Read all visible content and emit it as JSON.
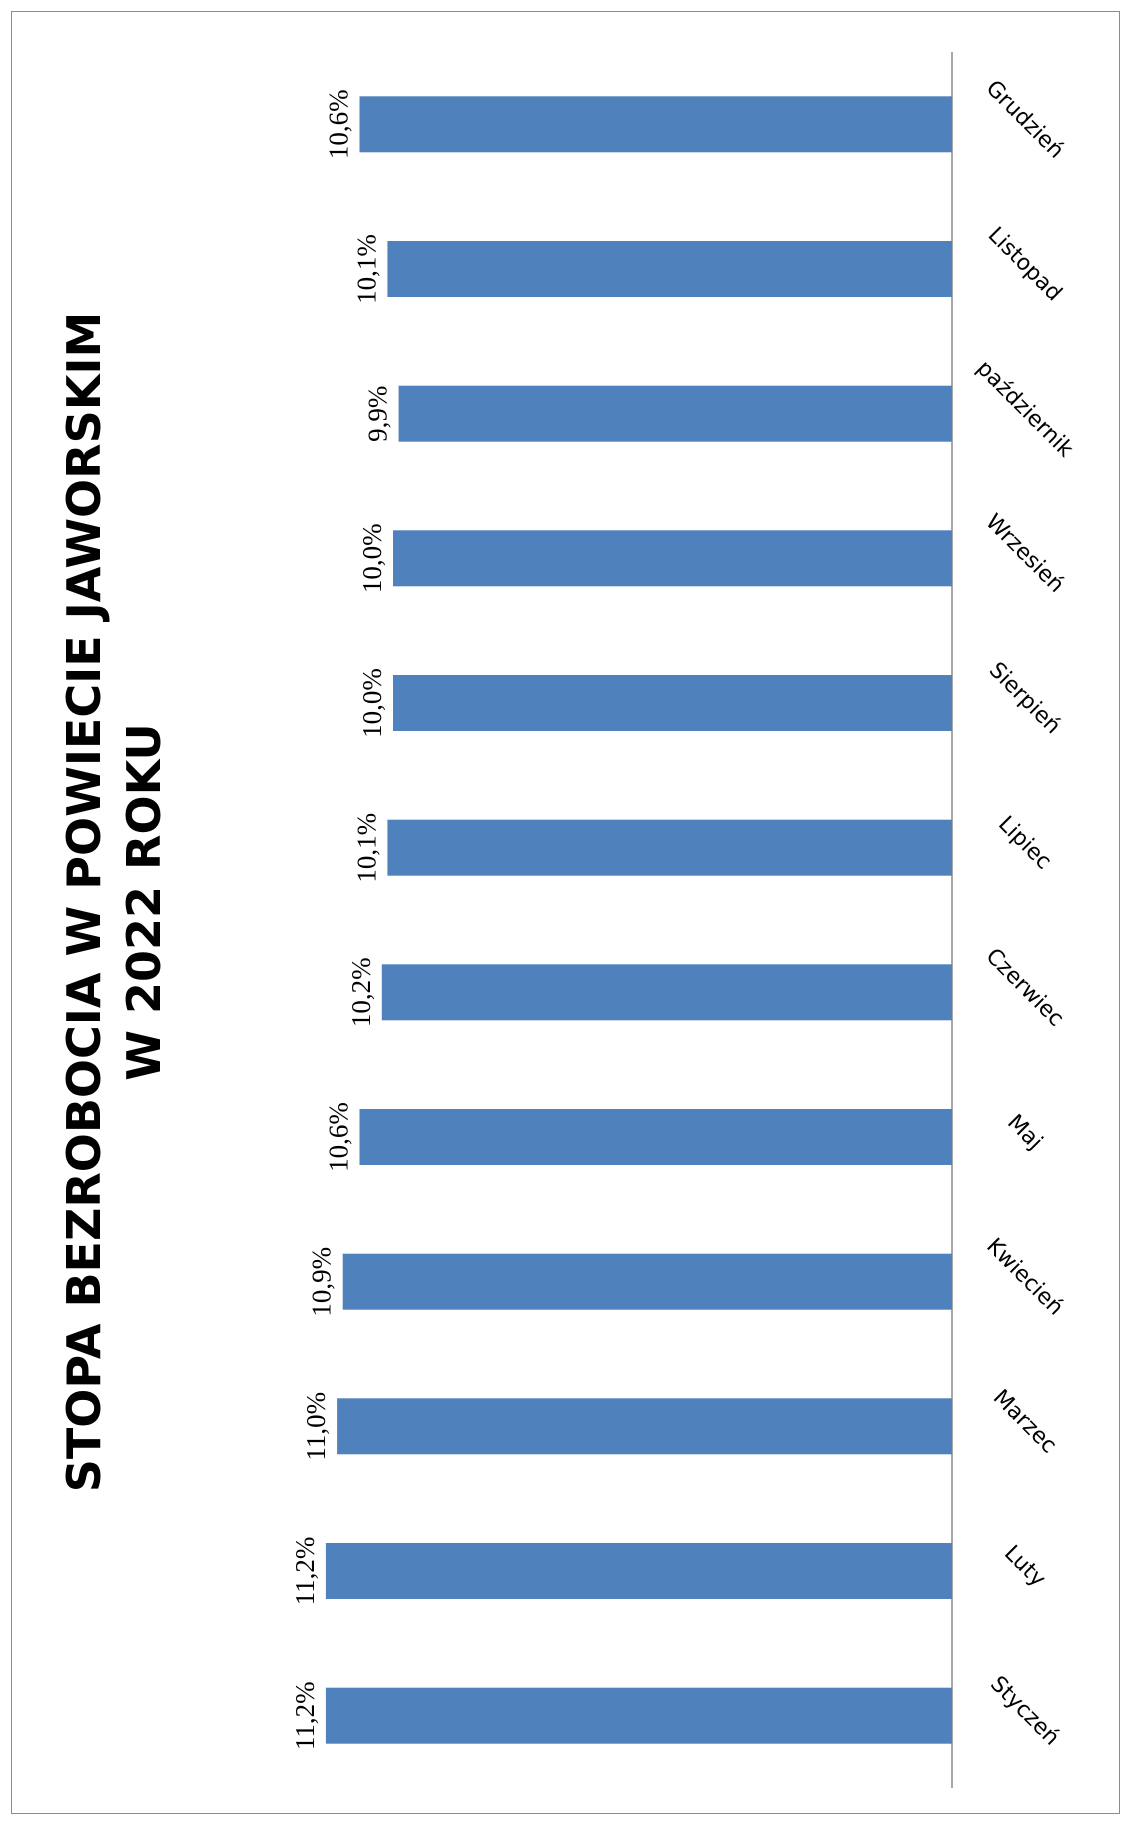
{
  "chart_data": {
    "type": "bar",
    "orientation": "rotated-90-clockwise",
    "title": "STOPA BEZROBOCIA W POWIECIE JAWORSKIM",
    "subtitle": "W 2022 ROKU",
    "categories": [
      "Styczeń",
      "Luty",
      "Marzec",
      "Kwiecień",
      "Maj",
      "Czerwiec",
      "Lipiec",
      "Sierpień",
      "Wrzesień",
      "październik",
      "Listopad",
      "Grudzień"
    ],
    "values": [
      11.2,
      11.2,
      11.0,
      10.9,
      10.6,
      10.2,
      10.1,
      10.0,
      10.0,
      9.9,
      10.1,
      10.6
    ],
    "value_labels": [
      "11,2%",
      "11,2%",
      "11,0%",
      "10,9%",
      "10,6%",
      "10,2%",
      "10,1%",
      "10,0%",
      "10,0%",
      "9,9%",
      "10,1%",
      "10,6%"
    ],
    "value_axis_min": 0,
    "grid": false,
    "legend": "none",
    "bar_color": "#4f81bd",
    "axis_color": "#8c8c8c"
  }
}
